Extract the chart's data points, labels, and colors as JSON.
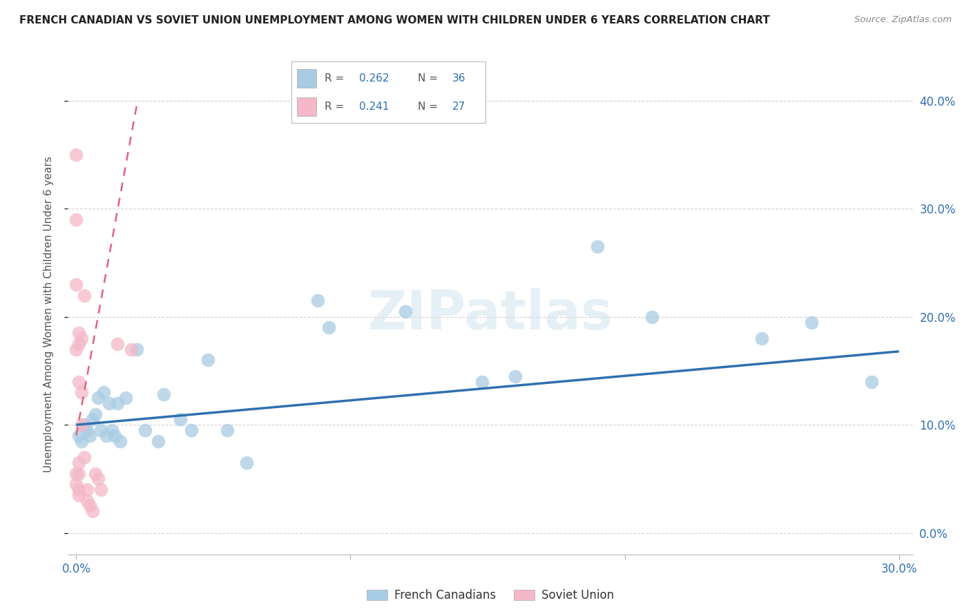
{
  "title": "FRENCH CANADIAN VS SOVIET UNION UNEMPLOYMENT AMONG WOMEN WITH CHILDREN UNDER 6 YEARS CORRELATION CHART",
  "source": "Source: ZipAtlas.com",
  "ylabel": "Unemployment Among Women with Children Under 6 years",
  "r_blue": 0.262,
  "n_blue": 36,
  "r_pink": 0.241,
  "n_pink": 27,
  "blue_color": "#a8cce4",
  "pink_color": "#f4b8c8",
  "blue_line_color": "#3070b0",
  "pink_line_color": "#e06080",
  "title_color": "#222222",
  "axis_tick_color": "#3070b0",
  "ylabel_color": "#555555",
  "background": "#ffffff",
  "watermark": "ZIPatlas",
  "x_min": -0.003,
  "x_max": 0.305,
  "y_min": -0.02,
  "y_max": 0.425,
  "blue_scatter_x": [
    0.001,
    0.002,
    0.003,
    0.004,
    0.005,
    0.006,
    0.007,
    0.008,
    0.009,
    0.01,
    0.011,
    0.012,
    0.013,
    0.014,
    0.015,
    0.016,
    0.018,
    0.022,
    0.025,
    0.03,
    0.032,
    0.038,
    0.042,
    0.048,
    0.055,
    0.062,
    0.088,
    0.092,
    0.12,
    0.148,
    0.16,
    0.19,
    0.21,
    0.25,
    0.268,
    0.29
  ],
  "blue_scatter_y": [
    0.09,
    0.085,
    0.1,
    0.095,
    0.09,
    0.105,
    0.11,
    0.125,
    0.095,
    0.13,
    0.09,
    0.12,
    0.095,
    0.09,
    0.12,
    0.085,
    0.125,
    0.17,
    0.095,
    0.085,
    0.128,
    0.105,
    0.095,
    0.16,
    0.095,
    0.065,
    0.215,
    0.19,
    0.205,
    0.14,
    0.145,
    0.265,
    0.2,
    0.18,
    0.195,
    0.14
  ],
  "pink_scatter_x": [
    0.0,
    0.0,
    0.0,
    0.0,
    0.0,
    0.0,
    0.001,
    0.001,
    0.001,
    0.001,
    0.001,
    0.001,
    0.001,
    0.002,
    0.002,
    0.002,
    0.003,
    0.003,
    0.004,
    0.004,
    0.005,
    0.006,
    0.007,
    0.008,
    0.009,
    0.015,
    0.02
  ],
  "pink_scatter_y": [
    0.35,
    0.29,
    0.23,
    0.17,
    0.055,
    0.045,
    0.185,
    0.175,
    0.14,
    0.065,
    0.055,
    0.04,
    0.035,
    0.18,
    0.13,
    0.1,
    0.22,
    0.07,
    0.04,
    0.03,
    0.025,
    0.02,
    0.055,
    0.05,
    0.04,
    0.175,
    0.17
  ],
  "blue_trend_x0": 0.0,
  "blue_trend_x1": 0.3,
  "blue_trend_y0": 0.1,
  "blue_trend_y1": 0.168,
  "pink_trend_x0": 0.0,
  "pink_trend_x1": 0.022,
  "pink_trend_y0": 0.09,
  "pink_trend_y1": 0.395,
  "grid_color": "#cccccc",
  "ytick_vals": [
    0.0,
    0.1,
    0.2,
    0.3,
    0.4
  ],
  "ytick_labels": [
    "0.0%",
    "10.0%",
    "20.0%",
    "30.0%",
    "40.0%"
  ],
  "xtick_vals": [
    0.0,
    0.1,
    0.2,
    0.3
  ],
  "xtick_labels": [
    "0.0%",
    "",
    "",
    "30.0%"
  ],
  "legend_blue_label": "French Canadians",
  "legend_pink_label": "Soviet Union"
}
